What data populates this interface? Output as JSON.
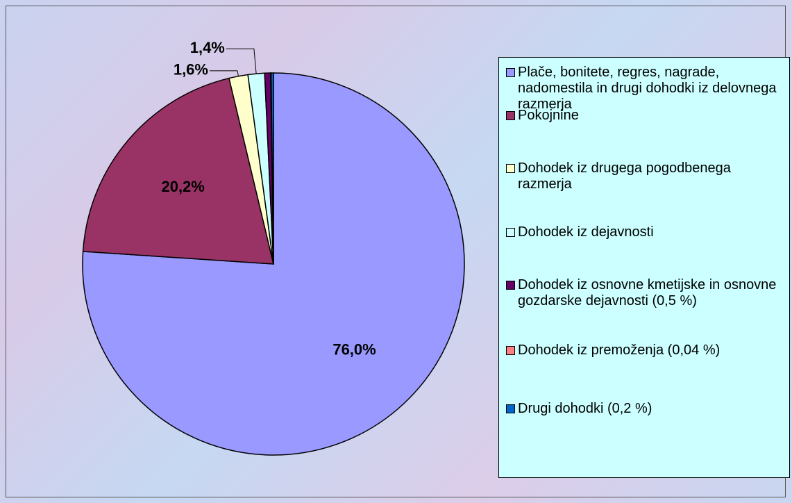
{
  "chart_data": {
    "type": "pie",
    "categories": [
      "Plače, bonitete, regres, nagrade, nadomestila in drugi dohodki iz delovnega razmerja",
      "Pokojnine",
      "Dohodek iz drugega pogodbenega razmerja",
      "Dohodek iz dejavnosti",
      "Dohodek iz osnovne kmetijske in osnovne gozdarske dejavnosti (0,5 %)",
      "Dohodek iz premoženja (0,04 %)",
      "Drugi dohodki (0,2 %)"
    ],
    "values": [
      76.0,
      20.2,
      1.6,
      1.4,
      0.5,
      0.04,
      0.2
    ],
    "value_labels": [
      "76,0%",
      "20,2%",
      "1,6%",
      "1,4%",
      null,
      null,
      null
    ],
    "colors": [
      "#9999ff",
      "#993366",
      "#ffffcc",
      "#ccffff",
      "#660066",
      "#ff8080",
      "#0066cc"
    ],
    "legend": "right"
  }
}
